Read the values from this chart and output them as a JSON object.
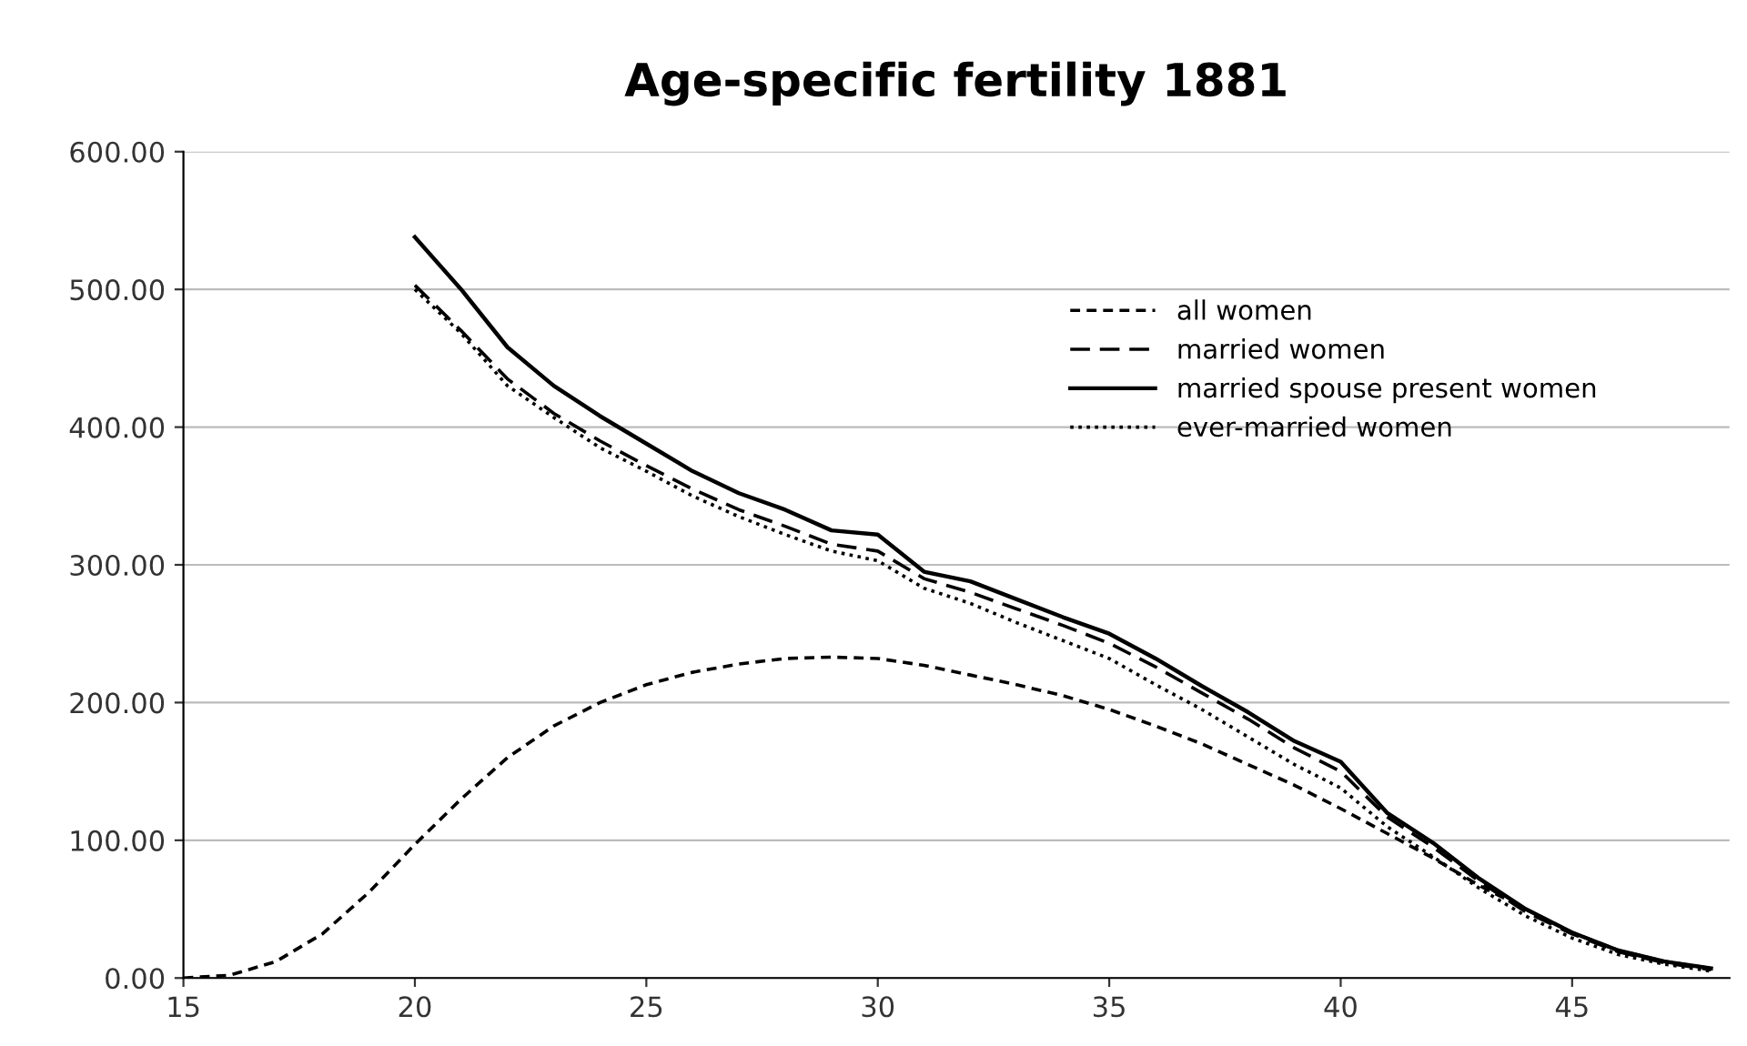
{
  "chart_data": {
    "type": "line",
    "title": "Age-specific fertility 1881",
    "x": [
      15,
      16,
      17,
      18,
      19,
      20,
      21,
      22,
      23,
      24,
      25,
      26,
      27,
      28,
      29,
      30,
      31,
      32,
      33,
      34,
      35,
      36,
      37,
      38,
      39,
      40,
      41,
      42,
      43,
      44,
      45,
      46,
      47,
      48
    ],
    "series": [
      {
        "name": "all women",
        "color": "#000000",
        "line_style": "dashed",
        "values": [
          0,
          2,
          12,
          32,
          62,
          97,
          130,
          160,
          183,
          200,
          213,
          222,
          228,
          232,
          233,
          232,
          227,
          220,
          213,
          205,
          195,
          183,
          170,
          155,
          140,
          123,
          105,
          87,
          67,
          50,
          33,
          20,
          12,
          7
        ]
      },
      {
        "name": "married women",
        "color": "#000000",
        "line_style": "dashed",
        "values": [
          null,
          null,
          null,
          null,
          null,
          503,
          470,
          435,
          410,
          390,
          372,
          355,
          340,
          328,
          315,
          310,
          290,
          280,
          268,
          256,
          243,
          226,
          207,
          188,
          167,
          150,
          117,
          95,
          70,
          48,
          32,
          19,
          11,
          6
        ]
      },
      {
        "name": "married spouse present women",
        "color": "#000000",
        "line_style": "solid",
        "values": [
          null,
          null,
          null,
          null,
          null,
          538,
          500,
          458,
          430,
          408,
          388,
          368,
          352,
          340,
          325,
          322,
          295,
          288,
          275,
          262,
          250,
          232,
          212,
          193,
          172,
          157,
          120,
          98,
          72,
          50,
          33,
          20,
          12,
          7
        ]
      },
      {
        "name": "ever-married women",
        "color": "#000000",
        "line_style": "dotted",
        "values": [
          null,
          null,
          null,
          null,
          null,
          500,
          468,
          430,
          407,
          385,
          368,
          350,
          335,
          322,
          310,
          303,
          283,
          272,
          258,
          245,
          232,
          213,
          195,
          175,
          155,
          138,
          110,
          88,
          65,
          45,
          29,
          17,
          10,
          5
        ]
      }
    ],
    "xlim": [
      15,
      48.4
    ],
    "xticks": [
      15,
      20,
      25,
      30,
      35,
      40,
      45
    ],
    "ylim": [
      0,
      600
    ],
    "yticks": [
      {
        "value": 0,
        "label": "0.00"
      },
      {
        "value": 100,
        "label": "100.00"
      },
      {
        "value": 200,
        "label": "200.00"
      },
      {
        "value": 300,
        "label": "300.00"
      },
      {
        "value": 400,
        "label": "400.00"
      },
      {
        "value": 500,
        "label": "500.00"
      },
      {
        "value": 600,
        "label": "600.00"
      }
    ],
    "grid": "y",
    "legend": "top right",
    "marker": "none"
  }
}
